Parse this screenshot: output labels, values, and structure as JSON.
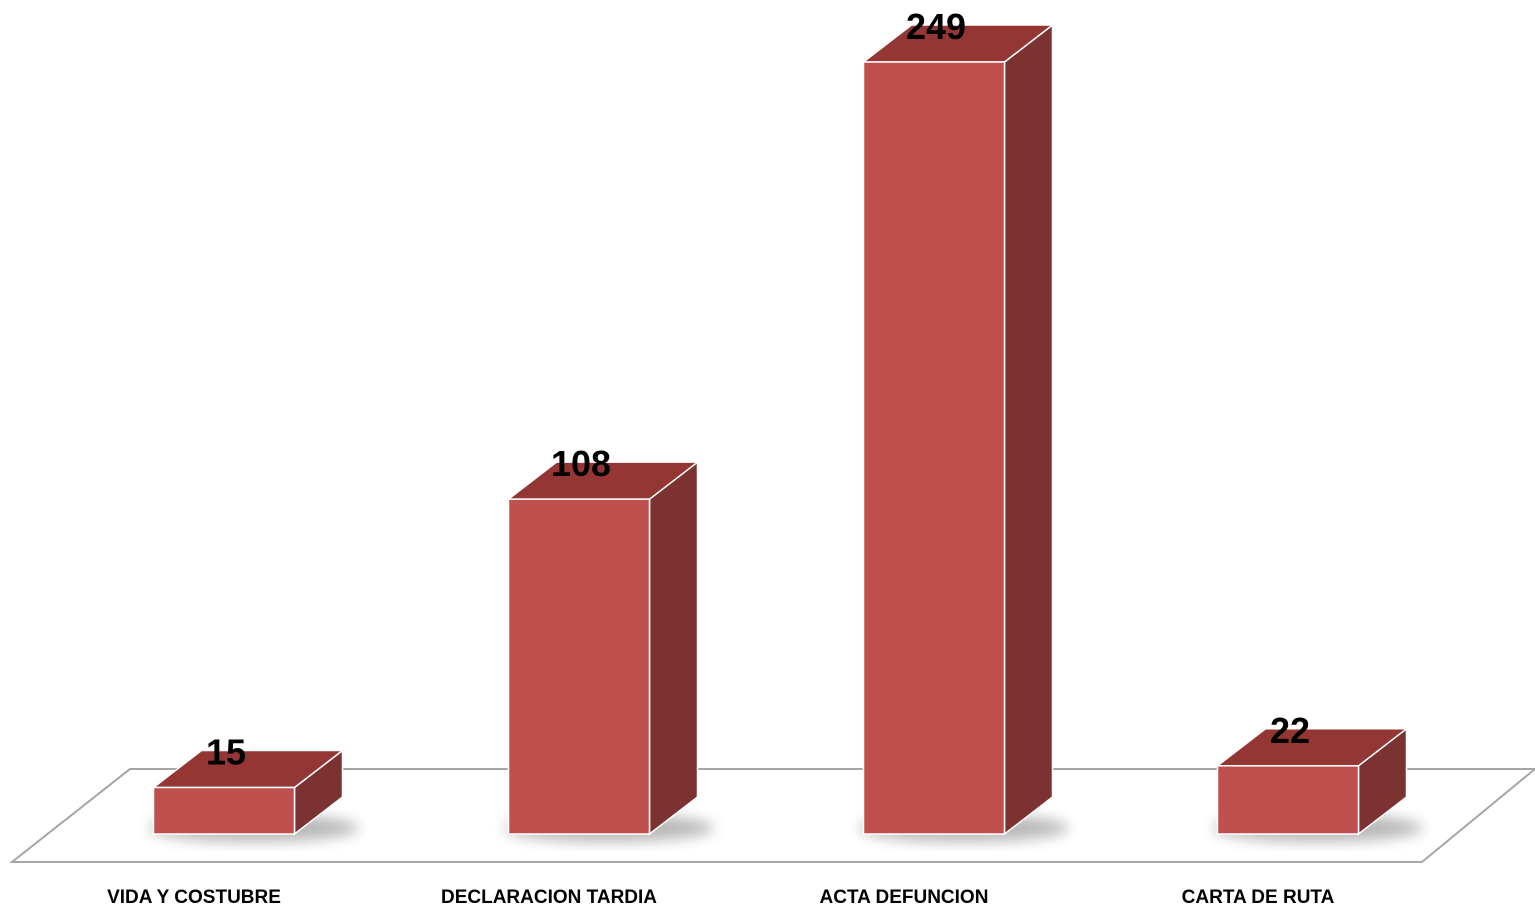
{
  "chart_data": {
    "type": "bar",
    "categories": [
      "VIDA Y COSTUBRE",
      "DECLARACION TARDIA",
      "ACTA DEFUNCION",
      "CARTA DE RUTA"
    ],
    "values": [
      15,
      108,
      249,
      22
    ],
    "data_labels": [
      "15",
      "108",
      "249",
      "22"
    ],
    "title": "",
    "xlabel": "",
    "ylabel": "",
    "ylim": [
      0,
      249
    ],
    "grid": false,
    "legend": "none",
    "style": "3d-column",
    "colors": {
      "front": "#C0504D",
      "top": "#943634",
      "side": "#7B3230",
      "edge": "#FFFFFF",
      "floor": "#A6A6A6"
    }
  }
}
